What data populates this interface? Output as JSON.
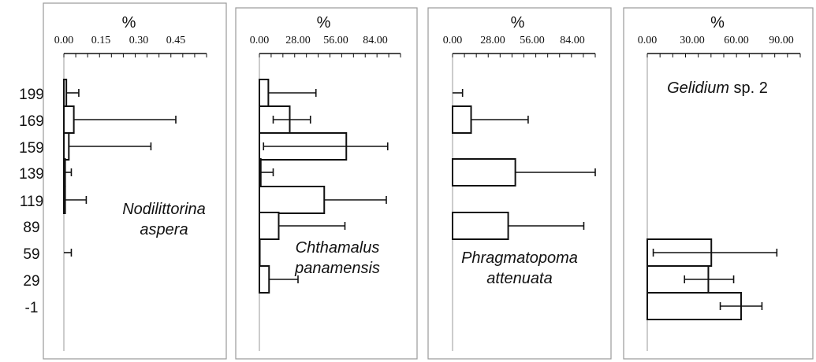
{
  "chart_data": {
    "type": "bar",
    "orientation": "horizontal",
    "error_bars": true,
    "grid": false,
    "categories": [
      "199",
      "169",
      "159",
      "139",
      "119",
      "89",
      "59",
      "29",
      "-1"
    ],
    "panels": [
      {
        "xlabel": "%",
        "ticks": [
          "0.00",
          "0.15",
          "0.30",
          "0.45"
        ],
        "xlim": [
          0,
          0.6
        ],
        "annotation": [
          "Nodilittorina",
          "aspera"
        ],
        "species_italic": true,
        "values": [
          0.01,
          0.04,
          0.02,
          0.005,
          0.005,
          0.0,
          0.0,
          0.0,
          0.0
        ],
        "err_upper": [
          0.06,
          0.45,
          0.35,
          0.03,
          0.09,
          0.0,
          0.03,
          0.0,
          0.0
        ],
        "err_lower": [
          0.0,
          0.0,
          0.0,
          0.0,
          0.0,
          0.0,
          0.0,
          0.0,
          0.0
        ]
      },
      {
        "xlabel": "%",
        "ticks": [
          "0.00",
          "28.00",
          "56.00",
          "84.00"
        ],
        "xlim": [
          0,
          107
        ],
        "annotation": [
          "Chthamalus",
          "panamensis"
        ],
        "species_italic": true,
        "values": [
          6.5,
          22,
          63,
          1.0,
          47,
          14,
          0.3,
          7,
          0.0
        ],
        "err_upper": [
          41,
          37,
          93,
          10,
          92,
          62,
          0.0,
          28,
          0.0
        ],
        "err_lower": [
          0.0,
          10,
          3,
          0.0,
          0.0,
          0.0,
          0.0,
          0.0,
          0.0
        ]
      },
      {
        "xlabel": "%",
        "ticks": [
          "0.00",
          "28.00",
          "56.00",
          "84.00"
        ],
        "xlim": [
          0,
          105
        ],
        "annotation": [
          "Phragmatopoma",
          "attenuata"
        ],
        "species_italic": true,
        "values": [
          0.0,
          13,
          0.0,
          44,
          0.0,
          39,
          0.0,
          0.0,
          0.0
        ],
        "err_upper": [
          7,
          53,
          0.0,
          104,
          0.0,
          92,
          0.0,
          0.0,
          0.0
        ],
        "err_lower": [
          0.0,
          0.0,
          0.0,
          0.0,
          0.0,
          0.0,
          0.0,
          0.0,
          0.0
        ]
      },
      {
        "xlabel": "%",
        "ticks": [
          "0.00",
          "30.00",
          "60.00",
          "90.00"
        ],
        "xlim": [
          0,
          104
        ],
        "annotation": [
          "Gelidium",
          " sp. 2"
        ],
        "species_italic": "first-word",
        "values": [
          0.0,
          0.0,
          0.0,
          0.0,
          0.0,
          0.0,
          43,
          41,
          63
        ],
        "err_upper": [
          0.0,
          0.0,
          0.0,
          0.0,
          0.0,
          0.0,
          87,
          58,
          77
        ],
        "err_lower": [
          0.0,
          0.0,
          0.0,
          0.0,
          0.0,
          0.0,
          4,
          25,
          49
        ]
      }
    ]
  }
}
